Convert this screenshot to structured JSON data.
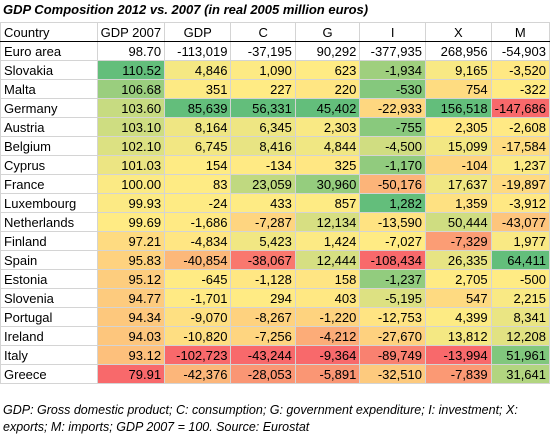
{
  "title": "GDP Composition 2012 vs. 2007 (in real 2005 million euros)",
  "note": "GDP: Gross domestic product; C: consumption; G: government expenditure; I: investment; X: exports; M: imports; GDP 2007 = 100. Source: Eurostat",
  "colors": {
    "low": "#f8696b",
    "mid": "#ffeb84",
    "high": "#63be7b",
    "neutral": "#ffffff"
  },
  "chart_data": {
    "type": "table",
    "columns": [
      "Country",
      "GDP 2007",
      "GDP",
      "C",
      "G",
      "I",
      "X",
      "M"
    ],
    "rows": [
      [
        "Euro area",
        "98.70",
        "-113,019",
        "-37,195",
        "90,292",
        "-377,935",
        "268,956",
        "-54,903"
      ],
      [
        "Slovakia",
        "110.52",
        "4,846",
        "1,090",
        "623",
        "-1,934",
        "9,165",
        "-3,520"
      ],
      [
        "Malta",
        "106.68",
        "351",
        "227",
        "220",
        "-530",
        "754",
        "-322"
      ],
      [
        "Germany",
        "103.60",
        "85,639",
        "56,331",
        "45,402",
        "-22,933",
        "156,518",
        "-147,686"
      ],
      [
        "Austria",
        "103.10",
        "8,164",
        "6,345",
        "2,303",
        "-755",
        "2,305",
        "-2,608"
      ],
      [
        "Belgium",
        "102.10",
        "6,745",
        "8,416",
        "4,844",
        "-4,500",
        "15,099",
        "-17,584"
      ],
      [
        "Cyprus",
        "101.03",
        "154",
        "-134",
        "325",
        "-1,170",
        "-104",
        "1,237"
      ],
      [
        "France",
        "100.00",
        "83",
        "23,059",
        "30,960",
        "-50,176",
        "17,637",
        "-19,897"
      ],
      [
        "Luxembourg",
        "99.93",
        "-24",
        "433",
        "857",
        "1,282",
        "1,359",
        "-3,912"
      ],
      [
        "Netherlands",
        "99.69",
        "-1,686",
        "-7,287",
        "12,134",
        "-13,590",
        "50,444",
        "-43,077"
      ],
      [
        "Finland",
        "97.21",
        "-4,834",
        "5,423",
        "1,424",
        "-7,027",
        "-7,329",
        "1,977"
      ],
      [
        "Spain",
        "95.83",
        "-40,854",
        "-38,067",
        "12,444",
        "-108,434",
        "26,335",
        "64,411"
      ],
      [
        "Estonia",
        "95.12",
        "-645",
        "-1,128",
        "158",
        "-1,237",
        "2,705",
        "-500"
      ],
      [
        "Slovenia",
        "94.77",
        "-1,701",
        "294",
        "403",
        "-5,195",
        "547",
        "2,215"
      ],
      [
        "Portugal",
        "94.34",
        "-9,070",
        "-8,267",
        "-1,220",
        "-12,753",
        "4,399",
        "8,341"
      ],
      [
        "Ireland",
        "94.03",
        "-10,820",
        "-7,256",
        "-4,212",
        "-27,670",
        "13,812",
        "12,208"
      ],
      [
        "Italy",
        "93.12",
        "-102,723",
        "-43,244",
        "-9,364",
        "-89,749",
        "-13,994",
        "51,961"
      ],
      [
        "Greece",
        "79.91",
        "-42,376",
        "-28,053",
        "-5,891",
        "-32,510",
        "-7,839",
        "31,641"
      ]
    ]
  }
}
